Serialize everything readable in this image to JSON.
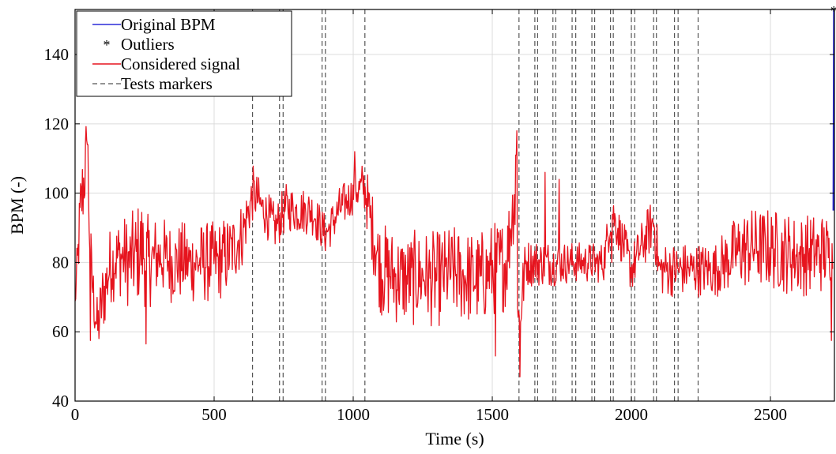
{
  "chart_data": {
    "type": "line",
    "title": "",
    "xlabel": "Time (s)",
    "ylabel": "BPM (-)",
    "xlim": [
      0,
      2730
    ],
    "ylim": [
      40,
      153
    ],
    "xticks": [
      0,
      500,
      1000,
      1500,
      2000,
      2500
    ],
    "yticks": [
      40,
      60,
      80,
      100,
      120,
      140
    ],
    "grid": true,
    "legend_position": "top-left",
    "legend": [
      {
        "label": "Original BPM",
        "style": "line",
        "color": "#2b2bd9"
      },
      {
        "label": "Outliers",
        "style": "marker",
        "color": "#e6141e"
      },
      {
        "label": "Considered signal",
        "style": "line",
        "color": "#e6141e"
      },
      {
        "label": "Tests markers",
        "style": "dashed",
        "color": "#555555"
      }
    ],
    "test_markers": [
      638,
      735,
      748,
      888,
      900,
      1042,
      1596,
      1653,
      1663,
      1718,
      1728,
      1787,
      1800,
      1858,
      1868,
      1925,
      1935,
      2000,
      2012,
      2080,
      2090,
      2155,
      2168,
      2240
    ],
    "series": [
      {
        "name": "Considered signal",
        "color": "#e6141e",
        "x": [
          0,
          20,
          40,
          60,
          80,
          100,
          130,
          160,
          200,
          240,
          260,
          300,
          350,
          400,
          450,
          500,
          550,
          600,
          640,
          680,
          720,
          760,
          800,
          850,
          900,
          950,
          1000,
          1040,
          1080,
          1100,
          1150,
          1200,
          1250,
          1300,
          1350,
          1400,
          1450,
          1500,
          1550,
          1580,
          1596,
          1620,
          1700,
          1800,
          1900,
          1930,
          2000,
          2080,
          2100,
          2200,
          2300,
          2400,
          2500,
          2600,
          2700,
          2725
        ],
        "y": [
          68,
          95,
          110,
          75,
          60,
          70,
          80,
          82,
          80,
          84,
          80,
          82,
          80,
          80,
          80,
          80,
          82,
          88,
          100,
          95,
          90,
          96,
          95,
          95,
          88,
          95,
          100,
          102,
          85,
          78,
          76,
          75,
          76,
          75,
          77,
          76,
          75,
          78,
          80,
          100,
          62,
          80,
          80,
          80,
          80,
          95,
          78,
          92,
          78,
          78,
          78,
          84,
          84,
          82,
          83,
          82
        ],
        "amplitude": [
          4,
          14,
          14,
          10,
          10,
          12,
          12,
          12,
          14,
          16,
          14,
          12,
          12,
          12,
          12,
          12,
          12,
          10,
          8,
          7,
          7,
          7,
          7,
          7,
          6,
          7,
          6,
          8,
          12,
          14,
          14,
          14,
          14,
          14,
          14,
          14,
          14,
          14,
          14,
          12,
          14,
          7,
          7,
          6,
          6,
          7,
          7,
          8,
          8,
          8,
          8,
          12,
          12,
          12,
          12,
          6
        ],
        "extremes": [
          [
            55,
            57.5
          ],
          [
            255,
            56.5
          ],
          [
            45,
            114
          ],
          [
            1588,
            118
          ],
          [
            1600,
            47
          ],
          [
            1512,
            53
          ],
          [
            1690,
            106
          ],
          [
            1740,
            104
          ],
          [
            1930,
            105
          ],
          [
            1585,
            111
          ],
          [
            1005,
            112
          ],
          [
            2720,
            57.5
          ],
          [
            1930,
            80
          ]
        ]
      },
      {
        "name": "Original BPM",
        "color": "#2b2bd9",
        "x": [
          2726,
          2728,
          2730
        ],
        "y": [
          95,
          153,
          153
        ]
      }
    ],
    "outliers": {
      "x": [
        2728
      ],
      "y": [
        153
      ]
    }
  }
}
